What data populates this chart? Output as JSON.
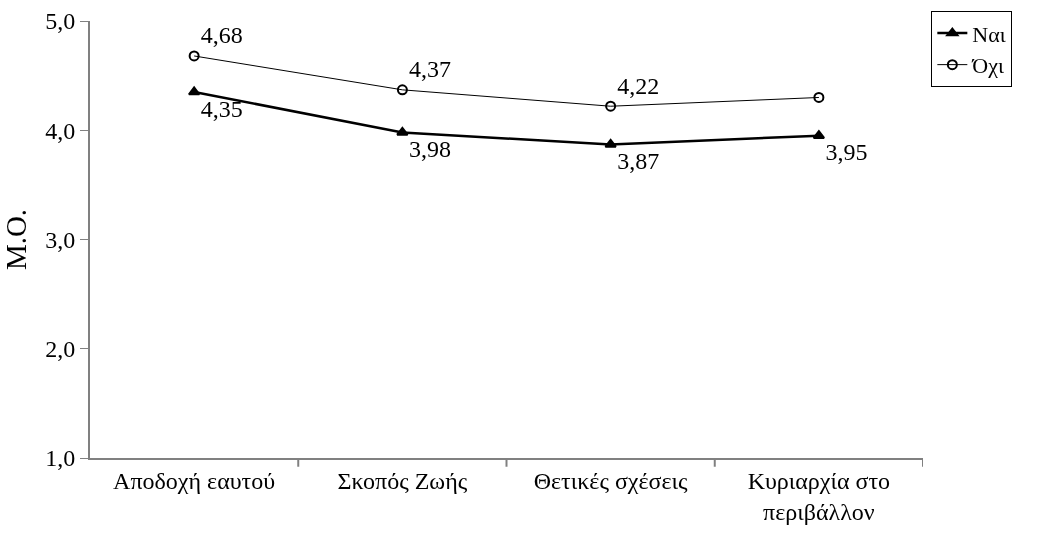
{
  "chart_data": {
    "type": "line",
    "ylabel": "Μ.Ο.",
    "categories": [
      "Αποδοχή εαυτού",
      "Σκοπός Ζωής",
      "Θετικές σχέσεις",
      "Κυριαρχία στο περιβάλλον"
    ],
    "series": [
      {
        "name": "Ναι",
        "color": "#000000",
        "marker": "triangle",
        "values": [
          4.35,
          3.98,
          3.87,
          3.95
        ],
        "value_labels": [
          "4,35",
          "3,98",
          "3,87",
          "3,95"
        ]
      },
      {
        "name": "Όχι",
        "color": "#000000",
        "marker": "circle",
        "values": [
          4.68,
          4.37,
          4.22,
          4.3
        ],
        "value_labels": [
          "4,68",
          "4,37",
          "4,22",
          null
        ]
      }
    ],
    "ylim": [
      1,
      5
    ],
    "yticks": [
      {
        "value": 1,
        "label": "1,0"
      },
      {
        "value": 2,
        "label": "2,0"
      },
      {
        "value": 3,
        "label": "3,0"
      },
      {
        "value": 4,
        "label": "4,0"
      },
      {
        "value": 5,
        "label": "5,0"
      }
    ],
    "grid": false,
    "legend": "top right"
  }
}
